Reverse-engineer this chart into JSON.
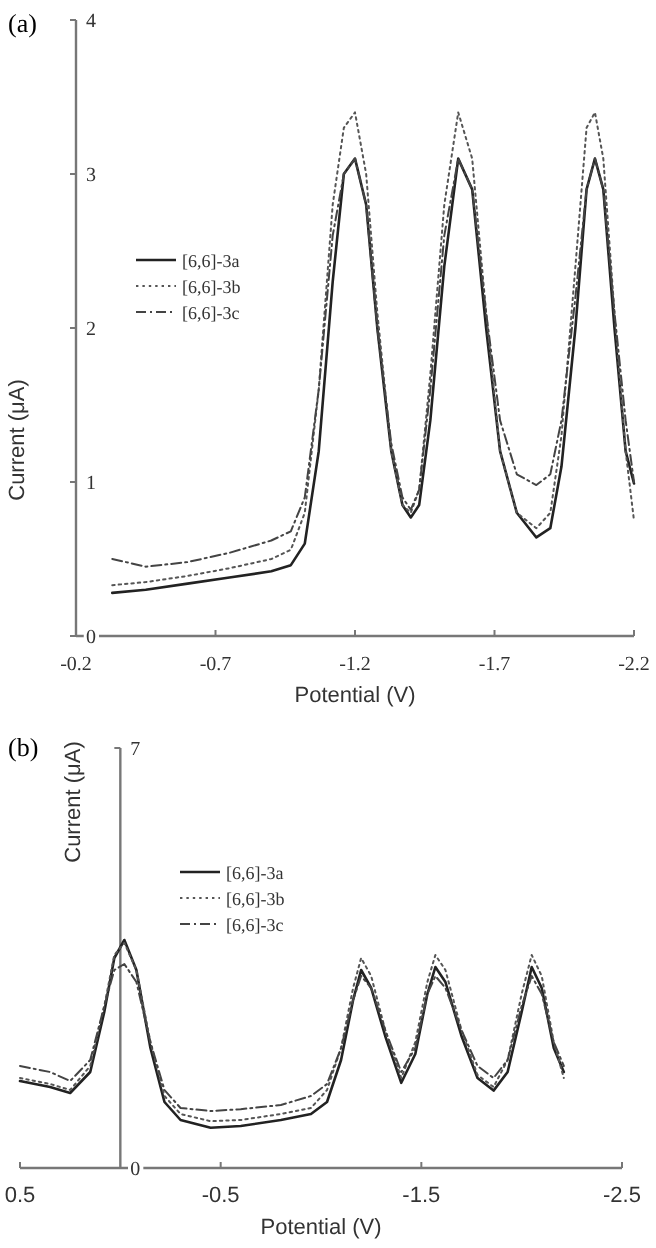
{
  "chart_data": [
    {
      "type": "line",
      "title": "(a)",
      "xlabel": "Potential (V)",
      "ylabel": "Current (μA)",
      "xlim": [
        -0.2,
        -2.2
      ],
      "xticks": [
        -0.2,
        -0.7,
        -1.2,
        -1.7,
        -2.2
      ],
      "ylim": [
        0,
        4
      ],
      "yticks": [
        0,
        1,
        2,
        3,
        4
      ],
      "legend": "left",
      "series": [
        {
          "name": "[6,6]-3a",
          "color": "#222222",
          "line_style": "solid",
          "x": [
            -0.33,
            -0.45,
            -0.6,
            -0.75,
            -0.9,
            -0.97,
            -1.02,
            -1.07,
            -1.12,
            -1.16,
            -1.2,
            -1.24,
            -1.28,
            -1.33,
            -1.37,
            -1.4,
            -1.43,
            -1.47,
            -1.52,
            -1.57,
            -1.62,
            -1.67,
            -1.72,
            -1.78,
            -1.85,
            -1.9,
            -1.94,
            -1.99,
            -2.03,
            -2.06,
            -2.09,
            -2.13,
            -2.17,
            -2.2
          ],
          "values": [
            0.28,
            0.3,
            0.34,
            0.38,
            0.42,
            0.46,
            0.6,
            1.2,
            2.3,
            3.0,
            3.1,
            2.8,
            2.0,
            1.2,
            0.85,
            0.77,
            0.85,
            1.4,
            2.4,
            3.1,
            2.9,
            2.0,
            1.2,
            0.8,
            0.64,
            0.7,
            1.1,
            2.0,
            2.9,
            3.1,
            2.9,
            2.0,
            1.2,
            0.99
          ]
        },
        {
          "name": "[6,6]-3b",
          "color": "#555555",
          "line_style": "dotted",
          "x": [
            -0.33,
            -0.45,
            -0.6,
            -0.75,
            -0.9,
            -0.97,
            -1.02,
            -1.07,
            -1.12,
            -1.16,
            -1.2,
            -1.24,
            -1.28,
            -1.33,
            -1.37,
            -1.4,
            -1.43,
            -1.47,
            -1.52,
            -1.57,
            -1.62,
            -1.67,
            -1.72,
            -1.78,
            -1.85,
            -1.9,
            -1.94,
            -1.99,
            -2.03,
            -2.06,
            -2.09,
            -2.13,
            -2.17,
            -2.2
          ],
          "values": [
            0.33,
            0.35,
            0.39,
            0.44,
            0.5,
            0.56,
            0.8,
            1.6,
            2.8,
            3.3,
            3.4,
            3.0,
            2.1,
            1.2,
            0.85,
            0.8,
            0.95,
            1.7,
            2.8,
            3.4,
            3.1,
            2.1,
            1.2,
            0.8,
            0.7,
            0.8,
            1.3,
            2.4,
            3.3,
            3.4,
            3.1,
            2.1,
            1.2,
            0.75
          ]
        },
        {
          "name": "[6,6]-3c",
          "color": "#444444",
          "line_style": "dashed",
          "x": [
            -0.33,
            -0.45,
            -0.6,
            -0.75,
            -0.9,
            -0.97,
            -1.02,
            -1.07,
            -1.12,
            -1.16,
            -1.2,
            -1.24,
            -1.28,
            -1.33,
            -1.37,
            -1.4,
            -1.43,
            -1.47,
            -1.52,
            -1.57,
            -1.62,
            -1.67,
            -1.72,
            -1.78,
            -1.85,
            -1.9,
            -1.94,
            -1.99,
            -2.03,
            -2.06,
            -2.09,
            -2.13,
            -2.17,
            -2.2
          ],
          "values": [
            0.5,
            0.45,
            0.48,
            0.54,
            0.62,
            0.68,
            0.9,
            1.6,
            2.6,
            3.0,
            3.1,
            2.8,
            2.0,
            1.25,
            0.9,
            0.82,
            0.95,
            1.6,
            2.6,
            3.1,
            2.9,
            2.1,
            1.4,
            1.05,
            0.98,
            1.05,
            1.4,
            2.2,
            2.9,
            3.1,
            2.9,
            2.1,
            1.4,
            1.0
          ]
        }
      ]
    },
    {
      "type": "line",
      "title": "(b)",
      "xlabel": "Potential (V)",
      "ylabel": "Current (μA)",
      "xlim": [
        0.5,
        -2.5
      ],
      "xticks": [
        0.5,
        -0.5,
        -1.5,
        -2.5
      ],
      "ylim": [
        0,
        7
      ],
      "yticks": [
        0,
        7
      ],
      "legend": "top left",
      "series": [
        {
          "name": "[6,6]-3a",
          "color": "#222222",
          "line_style": "solid",
          "x": [
            0.5,
            0.35,
            0.25,
            0.15,
            0.08,
            0.03,
            -0.02,
            -0.08,
            -0.15,
            -0.22,
            -0.3,
            -0.45,
            -0.6,
            -0.8,
            -0.95,
            -1.03,
            -1.1,
            -1.16,
            -1.2,
            -1.25,
            -1.32,
            -1.4,
            -1.47,
            -1.53,
            -1.57,
            -1.62,
            -1.7,
            -1.78,
            -1.86,
            -1.93,
            -2.0,
            -2.05,
            -2.1,
            -2.16,
            -2.21
          ],
          "values": [
            1.45,
            1.35,
            1.25,
            1.6,
            2.6,
            3.5,
            3.8,
            3.3,
            2.0,
            1.1,
            0.8,
            0.67,
            0.7,
            0.8,
            0.9,
            1.1,
            1.8,
            2.8,
            3.3,
            3.0,
            2.2,
            1.42,
            1.9,
            2.9,
            3.35,
            3.1,
            2.2,
            1.5,
            1.29,
            1.6,
            2.6,
            3.35,
            3.0,
            2.0,
            1.6
          ]
        },
        {
          "name": "[6,6]-3b",
          "color": "#555555",
          "line_style": "dotted",
          "x": [
            0.5,
            0.35,
            0.25,
            0.15,
            0.08,
            0.03,
            -0.02,
            -0.08,
            -0.15,
            -0.22,
            -0.3,
            -0.45,
            -0.6,
            -0.8,
            -0.95,
            -1.03,
            -1.1,
            -1.16,
            -1.2,
            -1.25,
            -1.32,
            -1.4,
            -1.47,
            -1.53,
            -1.57,
            -1.62,
            -1.7,
            -1.78,
            -1.86,
            -1.93,
            -2.0,
            -2.05,
            -2.1,
            -2.16,
            -2.21
          ],
          "values": [
            1.5,
            1.4,
            1.3,
            1.7,
            2.7,
            3.55,
            3.75,
            3.3,
            2.1,
            1.2,
            0.9,
            0.78,
            0.8,
            0.9,
            1.0,
            1.3,
            2.0,
            3.0,
            3.5,
            3.2,
            2.3,
            1.5,
            2.1,
            3.1,
            3.55,
            3.3,
            2.3,
            1.55,
            1.35,
            1.8,
            2.9,
            3.55,
            3.2,
            2.1,
            1.5
          ]
        },
        {
          "name": "[6,6]-3c",
          "color": "#444444",
          "line_style": "dashed",
          "x": [
            0.5,
            0.35,
            0.25,
            0.15,
            0.08,
            0.03,
            -0.02,
            -0.08,
            -0.15,
            -0.22,
            -0.3,
            -0.45,
            -0.6,
            -0.8,
            -0.95,
            -1.03,
            -1.1,
            -1.16,
            -1.2,
            -1.25,
            -1.32,
            -1.4,
            -1.47,
            -1.53,
            -1.57,
            -1.62,
            -1.7,
            -1.78,
            -1.86,
            -1.93,
            -2.0,
            -2.05,
            -2.1,
            -2.16,
            -2.21
          ],
          "values": [
            1.7,
            1.6,
            1.45,
            1.8,
            2.7,
            3.3,
            3.4,
            3.1,
            2.1,
            1.3,
            1.0,
            0.95,
            0.98,
            1.05,
            1.2,
            1.4,
            2.0,
            2.8,
            3.2,
            3.0,
            2.3,
            1.6,
            2.0,
            2.9,
            3.2,
            3.0,
            2.3,
            1.7,
            1.5,
            1.8,
            2.7,
            3.2,
            2.9,
            2.1,
            1.7
          ]
        }
      ]
    }
  ]
}
